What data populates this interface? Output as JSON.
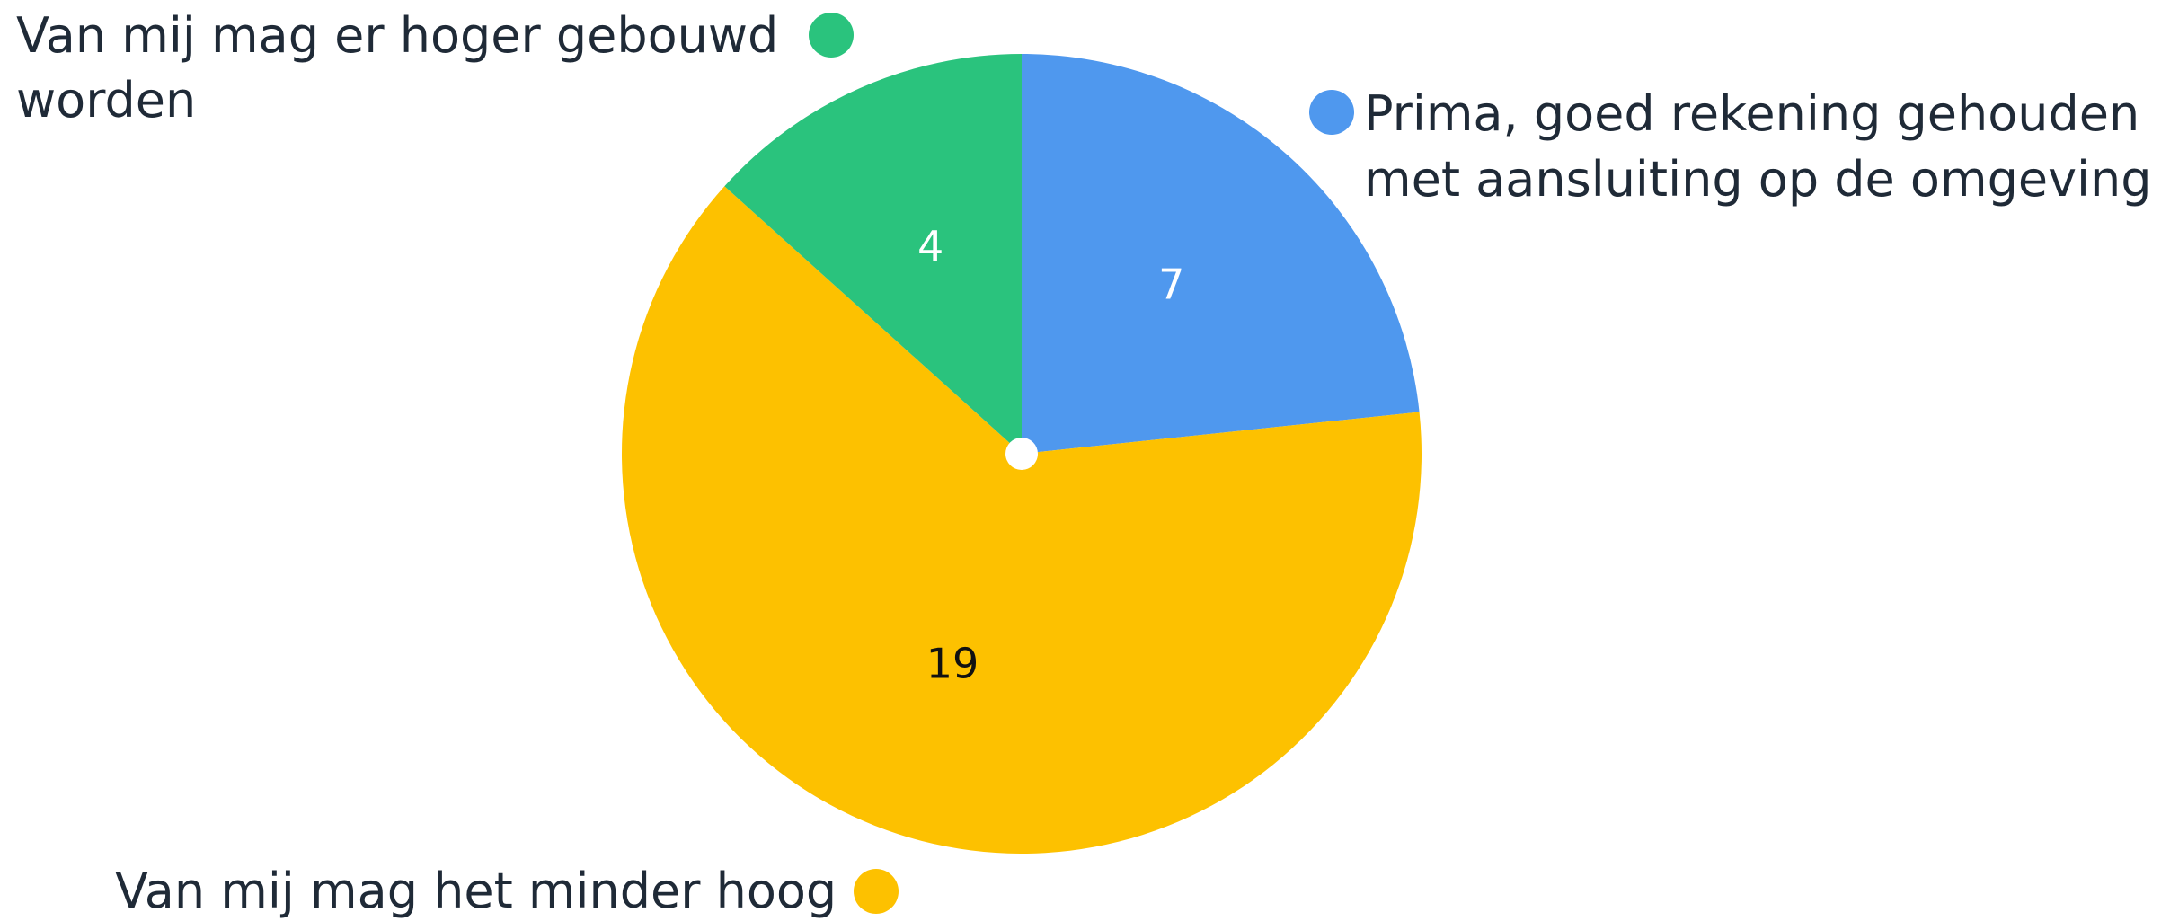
{
  "chart_data": {
    "type": "pie",
    "categories": [
      "Prima, goed rekening gehouden met aansluiting op de omgeving",
      "Van mij mag het minder hoog",
      "Van mij mag er hoger gebouwd worden"
    ],
    "values": [
      7,
      19,
      4
    ],
    "colors": [
      "#4f98ee",
      "#fdc100",
      "#2ac37d"
    ],
    "value_label_colors": [
      "#ffffff",
      "#111111",
      "#ffffff"
    ],
    "legend_lines": [
      [
        "Prima, goed rekening gehouden",
        "met aansluiting op de omgeving"
      ],
      [
        "Van mij mag het minder hoog"
      ],
      [
        "Van mij mag er hoger gebouwd",
        "worden"
      ]
    ],
    "start_angle_deg": 0,
    "direction": "clockwise",
    "center_marker": "white dot"
  }
}
